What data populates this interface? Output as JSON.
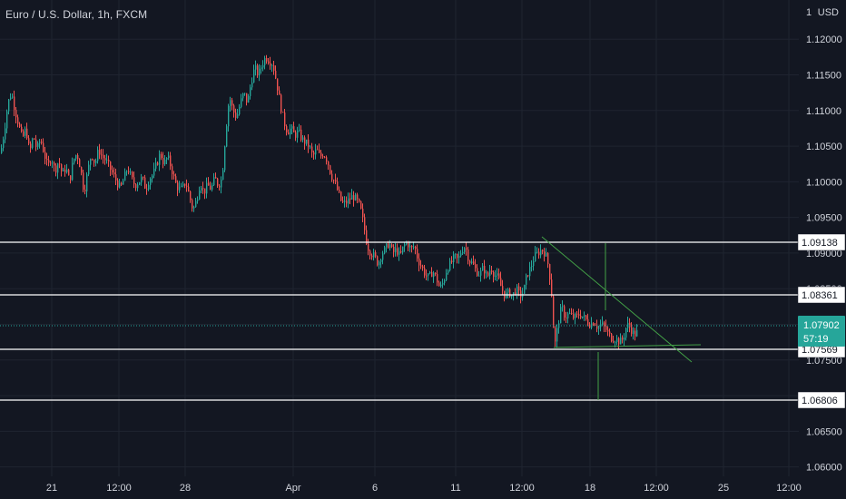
{
  "symbol_title": "Euro / U.S. Dollar, 1h, FXCM",
  "currency": "USD",
  "top_clipped_label": "1",
  "colors": {
    "background": "#131722",
    "grid": "#1f2430",
    "up": "#26a69a",
    "down": "#ef5350",
    "hline": "#ffffff",
    "trendline": "#43a047",
    "text": "#d1d4dc",
    "current_badge": "#26a69a"
  },
  "chart_data": {
    "type": "candlestick",
    "ylim": [
      1.0555,
      1.1255
    ],
    "y_ticks": [
      "1.12000",
      "1.11500",
      "1.11000",
      "1.10500",
      "1.10000",
      "1.09500",
      "1.09000",
      "1.08500",
      "1.08000",
      "1.07500",
      "1.07000",
      "1.06500",
      "1.06000"
    ],
    "x_ticks": [
      "21",
      "12:00",
      "28",
      "Apr",
      "6",
      "11",
      "12:00",
      "18",
      "12:00",
      "25",
      "12:00"
    ],
    "horizontal_levels": [
      "1.09138",
      "1.08361",
      "1.07569",
      "1.06806"
    ],
    "current_price": "1.07902",
    "countdown": "57:19",
    "price_path": [
      [
        0,
        1.104
      ],
      [
        4,
        1.107
      ],
      [
        8,
        1.111
      ],
      [
        12,
        1.1125
      ],
      [
        16,
        1.11
      ],
      [
        20,
        1.108
      ],
      [
        24,
        1.106
      ],
      [
        28,
        1.1075
      ],
      [
        32,
        1.104
      ],
      [
        36,
        1.1065
      ],
      [
        40,
        1.1045
      ],
      [
        44,
        1.106
      ],
      [
        48,
        1.104
      ],
      [
        52,
        1.102
      ],
      [
        56,
        1.1035
      ],
      [
        60,
        1.1015
      ],
      [
        64,
        1.103
      ],
      [
        68,
        1.101
      ],
      [
        72,
        1.102
      ],
      [
        76,
        1.1
      ],
      [
        80,
        1.103
      ],
      [
        84,
        1.104
      ],
      [
        88,
        1.102
      ],
      [
        92,
        1.0985
      ],
      [
        96,
        1.1015
      ],
      [
        100,
        1.104
      ],
      [
        104,
        1.1025
      ],
      [
        108,
        1.1045
      ],
      [
        112,
        1.1035
      ],
      [
        116,
        1.103
      ],
      [
        120,
        1.102
      ],
      [
        124,
        1.101
      ],
      [
        128,
        1.1
      ],
      [
        132,
        1.099
      ],
      [
        136,
        1.1005
      ],
      [
        140,
        1.102
      ],
      [
        144,
        1.1005
      ],
      [
        148,
        1.0995
      ],
      [
        152,
        1.1
      ],
      [
        156,
        1.1005
      ],
      [
        160,
        1.099
      ],
      [
        164,
        1.1005
      ],
      [
        168,
        1.101
      ],
      [
        172,
        1.1025
      ],
      [
        176,
        1.104
      ],
      [
        180,
        1.1025
      ],
      [
        184,
        1.1035
      ],
      [
        188,
        1.102
      ],
      [
        192,
        1.1
      ],
      [
        196,
        1.099
      ],
      [
        200,
        1.099
      ],
      [
        204,
        1.1
      ],
      [
        208,
        1.098
      ],
      [
        212,
        1.096
      ],
      [
        216,
        1.0975
      ],
      [
        220,
        1.1
      ],
      [
        224,
        1.0985
      ],
      [
        228,
        1.0995
      ],
      [
        232,
        1.099
      ],
      [
        236,
        1.1005
      ],
      [
        240,
        1.0995
      ],
      [
        244,
        1.1005
      ],
      [
        248,
        1.107
      ],
      [
        252,
        1.112
      ],
      [
        256,
        1.11
      ],
      [
        260,
        1.109
      ],
      [
        264,
        1.111
      ],
      [
        268,
        1.1125
      ],
      [
        272,
        1.111
      ],
      [
        276,
        1.114
      ],
      [
        280,
        1.116
      ],
      [
        284,
        1.115
      ],
      [
        288,
        1.1165
      ],
      [
        292,
        1.1175
      ],
      [
        296,
        1.117
      ],
      [
        300,
        1.1165
      ],
      [
        304,
        1.114
      ],
      [
        308,
        1.111
      ],
      [
        312,
        1.1085
      ],
      [
        316,
        1.107
      ],
      [
        320,
        1.1075
      ],
      [
        324,
        1.1065
      ],
      [
        328,
        1.107
      ],
      [
        332,
        1.106
      ],
      [
        336,
        1.1055
      ],
      [
        340,
        1.105
      ],
      [
        344,
        1.1035
      ],
      [
        348,
        1.1045
      ],
      [
        352,
        1.1035
      ],
      [
        356,
        1.104
      ],
      [
        360,
        1.103
      ],
      [
        364,
        1.101
      ],
      [
        368,
        1.1
      ],
      [
        372,
        1.0985
      ],
      [
        376,
        1.097
      ],
      [
        380,
        1.097
      ],
      [
        384,
        1.0975
      ],
      [
        388,
        1.098
      ],
      [
        392,
        1.0975
      ],
      [
        396,
        1.0965
      ],
      [
        400,
        1.094
      ],
      [
        404,
        1.091
      ],
      [
        408,
        1.09
      ],
      [
        412,
        1.0895
      ],
      [
        416,
        1.0885
      ],
      [
        420,
        1.09
      ],
      [
        424,
        1.0905
      ],
      [
        428,
        1.0915
      ],
      [
        432,
        1.09
      ],
      [
        436,
        1.0905
      ],
      [
        440,
        1.0895
      ],
      [
        444,
        1.091
      ],
      [
        448,
        1.0915
      ],
      [
        452,
        1.0905
      ],
      [
        456,
        1.091
      ],
      [
        460,
        1.089
      ],
      [
        464,
        1.088
      ],
      [
        468,
        1.087
      ],
      [
        472,
        1.0865
      ],
      [
        476,
        1.0875
      ],
      [
        480,
        1.0865
      ],
      [
        484,
        1.085
      ],
      [
        488,
        1.086
      ],
      [
        492,
        1.088
      ],
      [
        496,
        1.0885
      ],
      [
        500,
        1.0895
      ],
      [
        504,
        1.089
      ],
      [
        508,
        1.0905
      ],
      [
        512,
        1.091
      ],
      [
        516,
        1.089
      ],
      [
        520,
        1.0885
      ],
      [
        524,
        1.0875
      ],
      [
        528,
        1.087
      ],
      [
        532,
        1.088
      ],
      [
        536,
        1.0865
      ],
      [
        540,
        1.088
      ],
      [
        544,
        1.087
      ],
      [
        548,
        1.0865
      ],
      [
        552,
        1.085
      ],
      [
        556,
        1.084
      ],
      [
        560,
        1.0845
      ],
      [
        564,
        1.084
      ],
      [
        568,
        1.085
      ],
      [
        572,
        1.084
      ],
      [
        576,
        1.0845
      ],
      [
        580,
        1.087
      ],
      [
        584,
        1.088
      ],
      [
        588,
        1.0895
      ],
      [
        592,
        1.09
      ],
      [
        596,
        1.0905
      ],
      [
        600,
        1.09
      ],
      [
        604,
        1.088
      ],
      [
        608,
        1.083
      ],
      [
        610,
        1.0765
      ],
      [
        614,
        1.08
      ],
      [
        618,
        1.0825
      ],
      [
        622,
        1.081
      ],
      [
        626,
        1.0815
      ],
      [
        630,
        1.081
      ],
      [
        634,
        1.081
      ],
      [
        638,
        1.0815
      ],
      [
        642,
        1.081
      ],
      [
        646,
        1.0805
      ],
      [
        650,
        1.08
      ],
      [
        654,
        1.0805
      ],
      [
        658,
        1.0795
      ],
      [
        662,
        1.08
      ],
      [
        666,
        1.0795
      ],
      [
        670,
        1.0785
      ],
      [
        674,
        1.078
      ],
      [
        678,
        1.078
      ],
      [
        682,
        1.0775
      ],
      [
        686,
        1.078
      ],
      [
        690,
        1.08
      ],
      [
        694,
        1.0795
      ],
      [
        698,
        1.0785
      ],
      [
        702,
        1.079
      ]
    ]
  }
}
